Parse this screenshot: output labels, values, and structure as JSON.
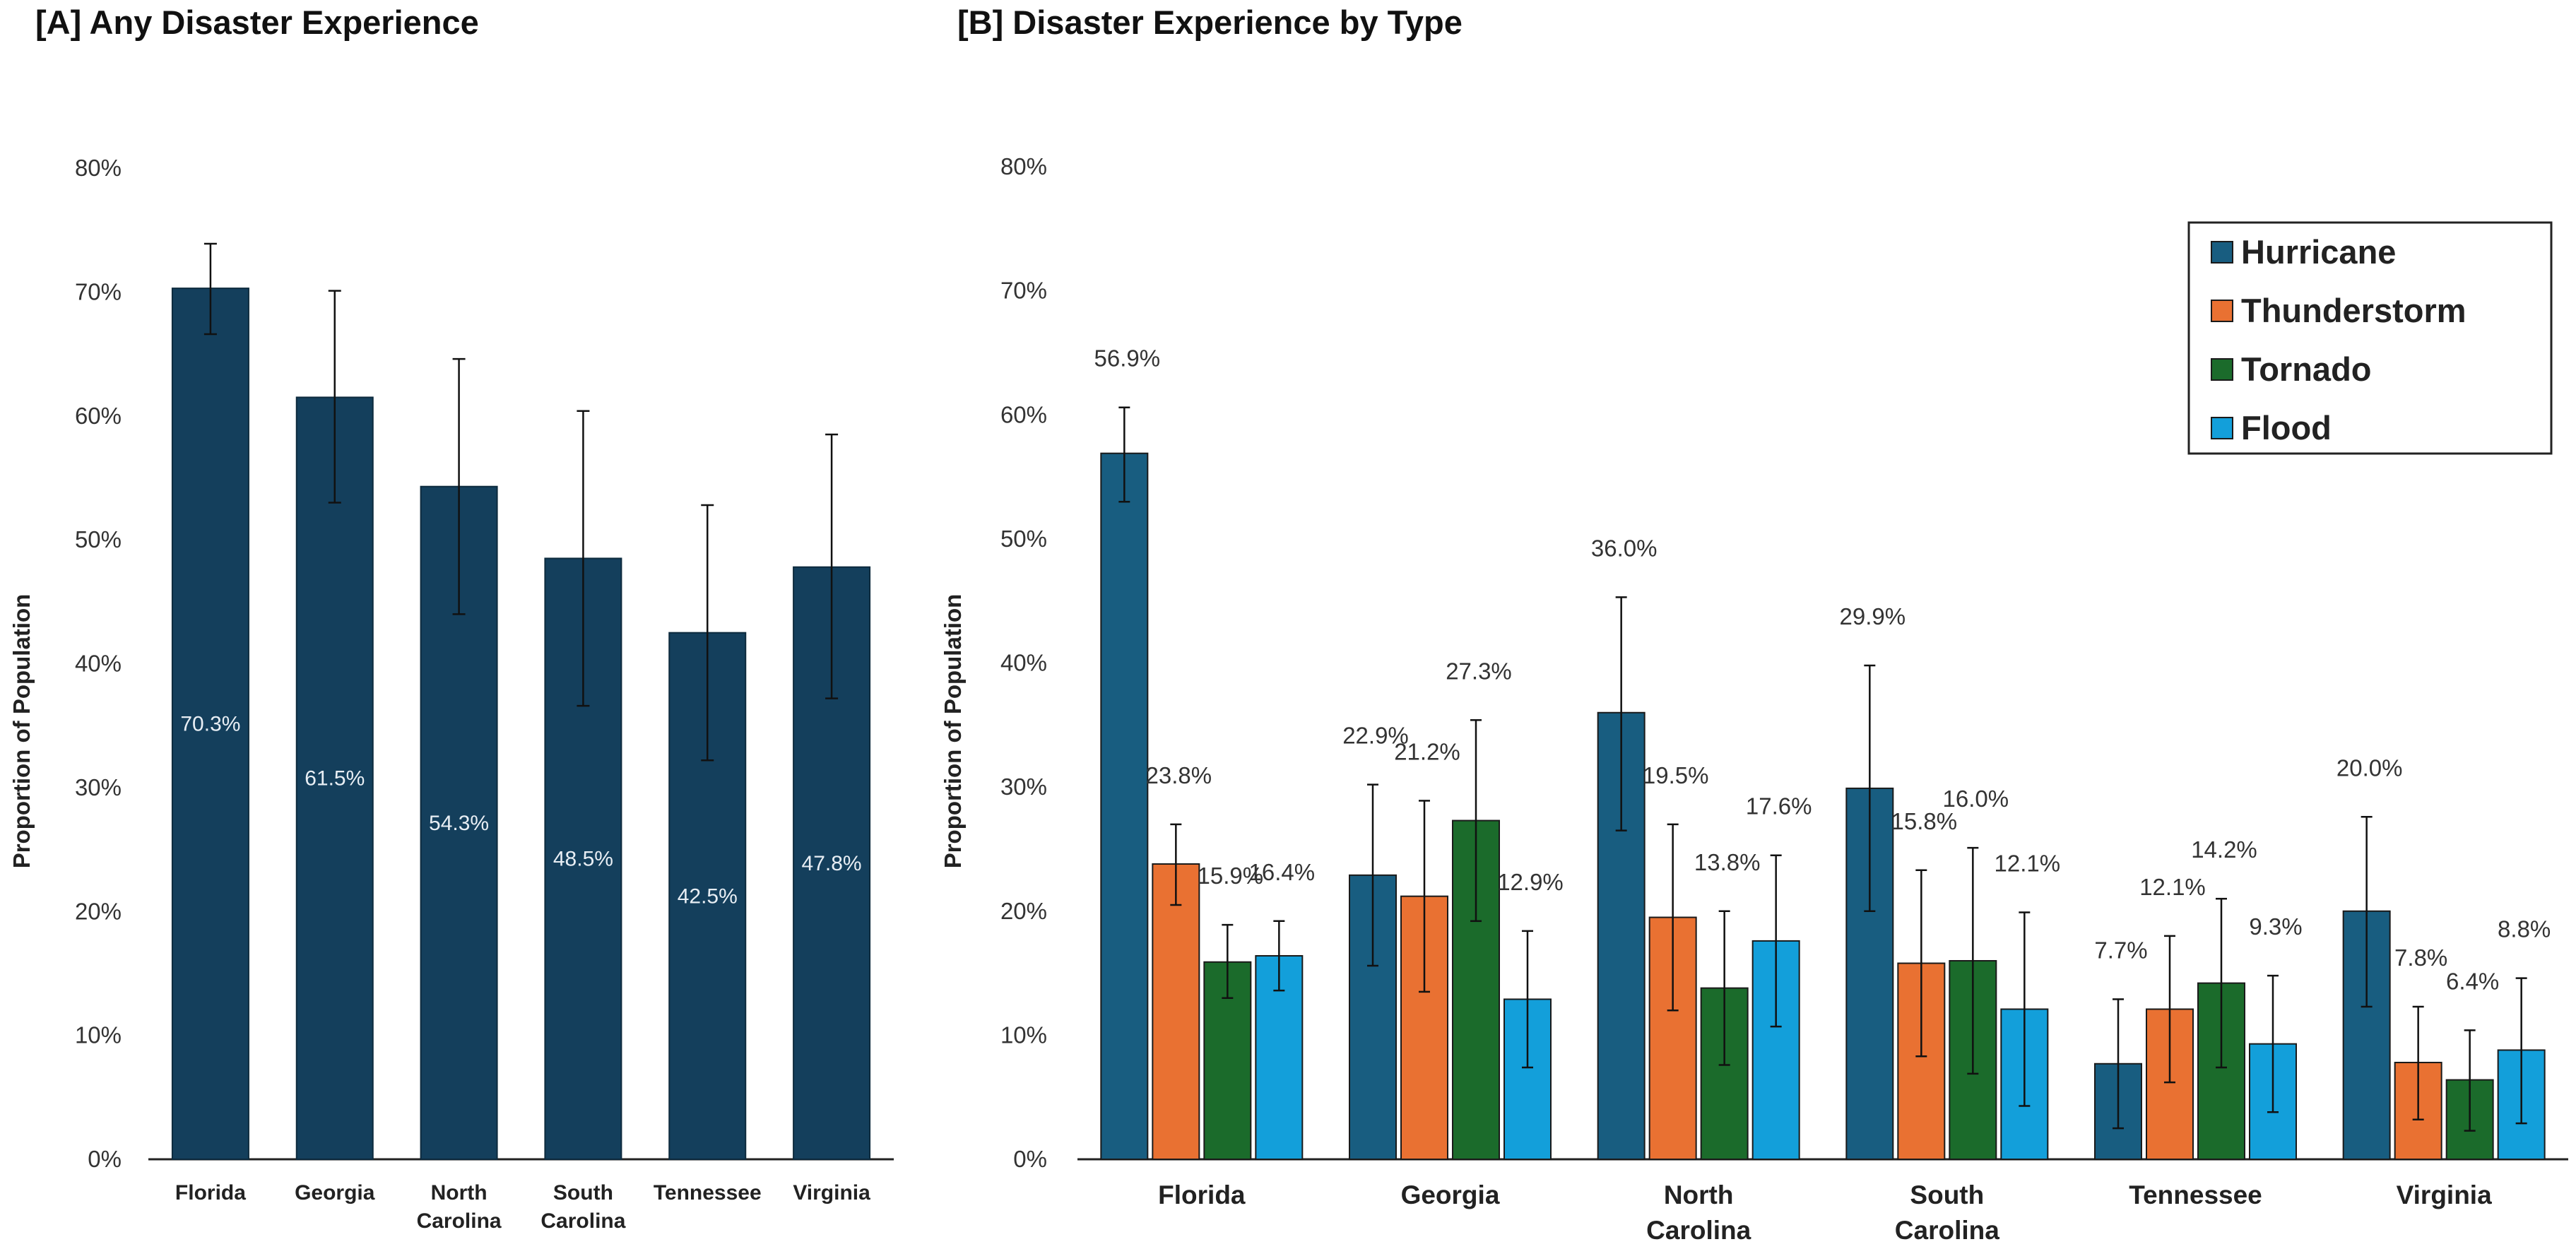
{
  "chart_data": [
    {
      "type": "bar",
      "title": "[A] Any Disaster Experience",
      "ylabel": "Proportion of Population",
      "ylim": [
        0,
        80
      ],
      "yticks": [
        "0%",
        "10%",
        "20%",
        "30%",
        "40%",
        "50%",
        "60%",
        "70%",
        "80%"
      ],
      "categories": [
        [
          "Florida"
        ],
        [
          "Georgia"
        ],
        [
          "North",
          "Carolina"
        ],
        [
          "South",
          "Carolina"
        ],
        [
          "Tennessee"
        ],
        [
          "Virginia"
        ]
      ],
      "color": "#143f5c",
      "values": [
        70.3,
        61.5,
        54.3,
        48.5,
        42.5,
        47.8
      ],
      "labels": [
        "70.3%",
        "61.5%",
        "54.3%",
        "48.5%",
        "42.5%",
        "47.8%"
      ],
      "error_low": [
        66.6,
        53.0,
        44.0,
        36.6,
        32.2,
        37.2
      ],
      "error_high": [
        73.9,
        70.1,
        64.6,
        60.4,
        52.8,
        58.5
      ]
    },
    {
      "type": "bar",
      "title": "[B] Disaster Experience by Type",
      "ylabel": "Proportion of Population",
      "ylim": [
        0,
        80
      ],
      "yticks": [
        "0%",
        "10%",
        "20%",
        "30%",
        "40%",
        "50%",
        "60%",
        "70%",
        "80%"
      ],
      "categories": [
        [
          "Florida"
        ],
        [
          "Georgia"
        ],
        [
          "North",
          "Carolina"
        ],
        [
          "South",
          "Carolina"
        ],
        [
          "Tennessee"
        ],
        [
          "Virginia"
        ]
      ],
      "legend_position": "top-right",
      "series": [
        {
          "name": "Hurricane",
          "color": "#185d80",
          "values": [
            56.9,
            22.9,
            36.0,
            29.9,
            7.7,
            20.0
          ],
          "labels": [
            "56.9%",
            "22.9%",
            "36.0%",
            "29.9%",
            "7.7%",
            "20.0%"
          ],
          "error_low": [
            53.0,
            15.6,
            26.5,
            20.0,
            2.5,
            12.3
          ],
          "error_high": [
            60.6,
            30.2,
            45.3,
            39.8,
            12.9,
            27.6
          ]
        },
        {
          "name": "Thunderstorm",
          "color": "#e97132",
          "values": [
            23.8,
            21.2,
            19.5,
            15.8,
            12.1,
            7.8
          ],
          "labels": [
            "23.8%",
            "21.2%",
            "19.5%",
            "15.8%",
            "12.1%",
            "7.8%"
          ],
          "error_low": [
            20.5,
            13.5,
            12.0,
            8.3,
            6.2,
            3.2
          ],
          "error_high": [
            27.0,
            28.9,
            27.0,
            23.3,
            18.0,
            12.3
          ]
        },
        {
          "name": "Tornado",
          "color": "#1b6b2b",
          "values": [
            15.9,
            27.3,
            13.8,
            16.0,
            14.2,
            6.4
          ],
          "labels": [
            "15.9%",
            "27.3%",
            "13.8%",
            "16.0%",
            "14.2%",
            "6.4%"
          ],
          "error_low": [
            13.0,
            19.2,
            7.6,
            6.9,
            7.4,
            2.3
          ],
          "error_high": [
            18.9,
            35.4,
            20.0,
            25.1,
            21.0,
            10.4
          ]
        },
        {
          "name": "Flood",
          "color": "#139fda",
          "values": [
            16.4,
            12.9,
            17.6,
            12.1,
            9.3,
            8.8
          ],
          "labels": [
            "16.4%",
            "12.9%",
            "17.6%",
            "12.1%",
            "9.3%",
            "8.8%"
          ],
          "error_low": [
            13.6,
            7.4,
            10.7,
            4.3,
            3.8,
            2.9
          ],
          "error_high": [
            19.2,
            18.4,
            24.5,
            19.9,
            14.8,
            14.6
          ]
        }
      ]
    }
  ]
}
